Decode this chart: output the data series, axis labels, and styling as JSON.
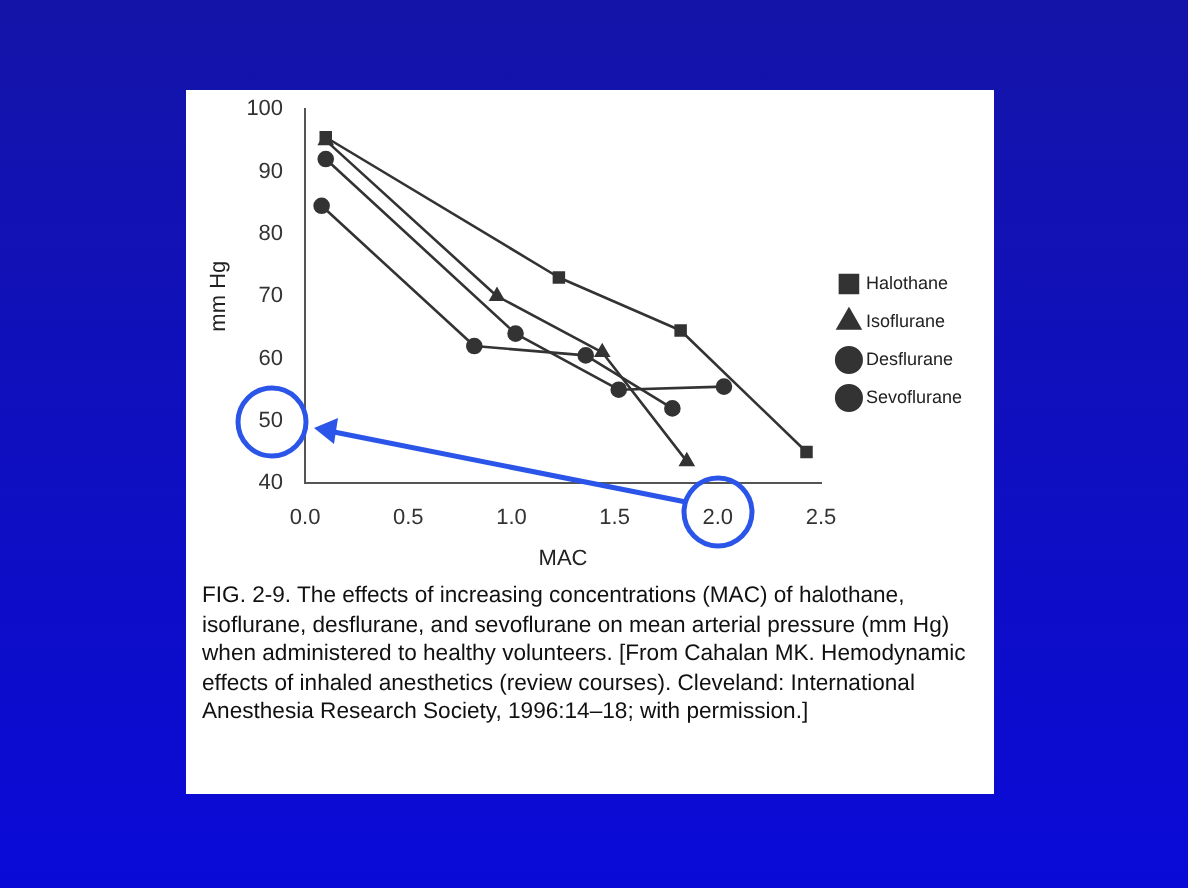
{
  "chart_data": {
    "type": "line",
    "xlabel": "MAC",
    "ylabel": "mm Hg",
    "xlim": [
      0,
      2.5
    ],
    "xticks": [
      {
        "value": 0,
        "label": "0.0"
      },
      {
        "value": 0.5,
        "label": "0.5"
      },
      {
        "value": 1,
        "label": "1.0"
      },
      {
        "value": 1.5,
        "label": "1.5"
      },
      {
        "value": 2,
        "label": "2.0"
      },
      {
        "value": 2.5,
        "label": "2.5"
      }
    ],
    "ylim": [
      40,
      100
    ],
    "yticks": [
      40,
      50,
      60,
      70,
      80,
      90,
      100
    ],
    "grid": false,
    "legend": "right",
    "line_style": "solid",
    "series": [
      {
        "name": "Halothane",
        "color": "#333333",
        "marker": "square",
        "x": [
          0.1,
          1.23,
          1.82,
          2.43
        ],
        "values": [
          95.5,
          73,
          64.5,
          45
        ]
      },
      {
        "name": "Isoflurane",
        "color": "#333333",
        "marker": "triangle",
        "x": [
          0.1,
          0.93,
          1.44,
          1.85
        ],
        "values": [
          95,
          70,
          61,
          43.5
        ]
      },
      {
        "name": "Desflurane",
        "color": "#333333",
        "marker": "circle",
        "x": [
          0.08,
          0.82,
          1.36,
          1.78
        ],
        "values": [
          84.5,
          62,
          60.5,
          52
        ]
      },
      {
        "name": "Sevoflurane",
        "color": "#333333",
        "marker": "circle",
        "x": [
          0.1,
          1.02,
          1.52,
          2.03
        ],
        "values": [
          92,
          64,
          55,
          55.5
        ]
      }
    ],
    "annotations": [
      "FIG. 2-9. The effects of increasing concentrations (MAC) of halothane, isoflurane, desflurane, and sevoflurane on mean arterial pressure (mm Hg) when administered to healthy volunteers. [From Cahalan MK. Hemodynamic effects of inhaled anesthetics (review courses). Cleveland: International Anesthesia Research Society, 1996:14–18; with permission.]"
    ]
  }
}
